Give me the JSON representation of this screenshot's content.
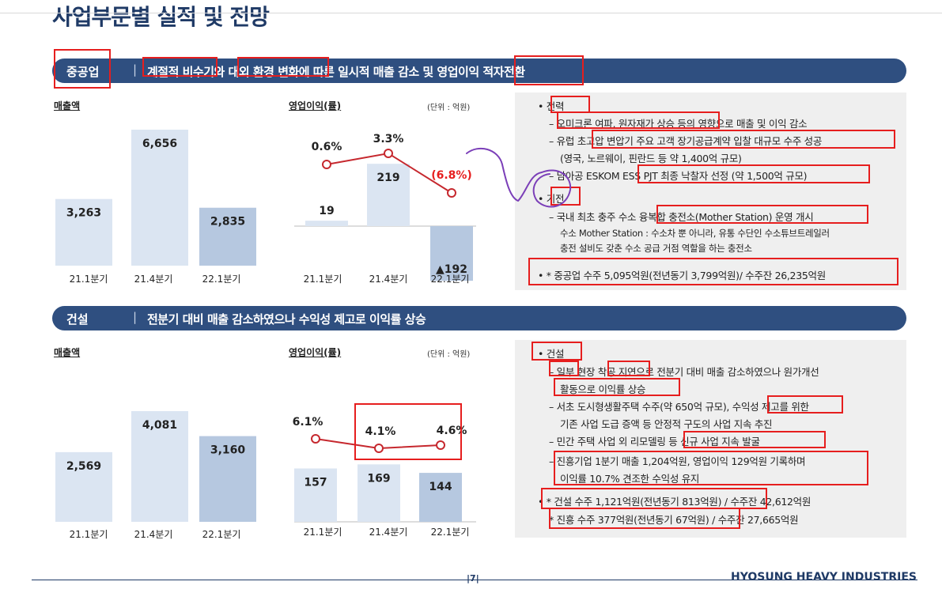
{
  "page": {
    "title": "사업부문별 실적 및 전망",
    "page_number": "7",
    "company": "HYOSUNG HEAVY INDUSTRIES"
  },
  "colors": {
    "navy": "#2f4f80",
    "bar_light": "#dbe5f2",
    "bar_dark": "#b6c8e0",
    "line_red": "#c6282e",
    "annot_red": "#e61e1e",
    "annot_purple": "#7b3fb8"
  },
  "sections": [
    {
      "tag": "중공업",
      "headline": "계절적 비수기와 대외 환경 변화에 따른 일시적 매출 감소 및 영업이익 적자전환",
      "sales_label": "매출액",
      "op_label": "영업이익(률)",
      "unit": "(단위 : 억원)",
      "bullets": [
        {
          "head": "전력",
          "items": [
            {
              "dash": true,
              "text": "오미크론 여파, 원자재가 상승 등의 영향으로 매출 및 이익 감소"
            },
            {
              "dash": true,
              "text": "유럽 초고압 변압기 주요 고객 장기공급계약 입찰 대규모 수주 성공"
            },
            {
              "dash": false,
              "text": "(영국, 노르웨이, 핀란드 등 약 1,400억 규모)"
            },
            {
              "dash": true,
              "text": "남아공 ESKOM ESS PJT 최종 낙찰자 선정 (약 1,500억 규모)"
            }
          ]
        },
        {
          "head": "기전",
          "items": [
            {
              "dash": true,
              "text": "국내 최초 충주 수소 융복합 충전소(Mother Station) 운영 개시"
            },
            {
              "dash": false,
              "text": "수소 Mother Station : 수소차 뿐 아니라, 유통 수단인 수소튜브트레일러"
            },
            {
              "dash": false,
              "text": "충전 설비도 갖춘 수소 공급 거점 역할을 하는 충전소"
            }
          ]
        }
      ],
      "summary": [
        "* 중공업 수주 5,095억원(전년동기 3,799억원)/ 수주잔 26,235억원"
      ]
    },
    {
      "tag": "건설",
      "headline": "전분기 대비 매출 감소하였으나 수익성 제고로 이익률 상승",
      "sales_label": "매출액",
      "op_label": "영업이익(률)",
      "unit": "(단위 : 억원)",
      "bullets": [
        {
          "head": "건설",
          "items": [
            {
              "dash": true,
              "text": "일부 현장 착공 지연으로 전분기 대비 매출 감소하였으나 원가개선"
            },
            {
              "dash": false,
              "text": "활동으로 이익률 상승"
            },
            {
              "dash": true,
              "text": "서초 도시형생활주택 수주(약 650억 규모), 수익성 제고를 위한"
            },
            {
              "dash": false,
              "text": "기존 사업 도급 증액 등 안정적 구도의 사업 지속 추진"
            },
            {
              "dash": true,
              "text": "민간 주택 사업 외 리모델링 등 신규 사업 지속 발굴"
            },
            {
              "dash": true,
              "text": "진흥기업 1분기 매출 1,204억원, 영업이익 129억원 기록하며"
            },
            {
              "dash": false,
              "text": "이익률 10.7% 견조한 수익성 유지"
            }
          ]
        }
      ],
      "summary": [
        "* 건설 수주 1,121억원(전년동기 813억원) / 수주잔 42,612억원",
        "* 진흥 수주 377억원(전년동기 67억원) / 수주잔 27,665억원"
      ]
    }
  ],
  "chart_data": [
    {
      "type": "bar",
      "title": "매출액",
      "section": "중공업",
      "categories": [
        "21.1분기",
        "21.4분기",
        "22.1분기"
      ],
      "values": [
        3263,
        6656,
        2835
      ],
      "labels": [
        "3,263",
        "6,656",
        "2,835"
      ],
      "ylim": [
        0,
        7000
      ]
    },
    {
      "type": "bar+line",
      "title": "영업이익(률)",
      "section": "중공업",
      "unit": "(단위 : 억원)",
      "categories": [
        "21.1분기",
        "21.4분기",
        "22.1분기"
      ],
      "values": [
        19,
        219,
        -192
      ],
      "labels": [
        "19",
        "219",
        "▲192"
      ],
      "margin": [
        0.6,
        3.3,
        -6.8
      ],
      "margin_labels": [
        "0.6%",
        "3.3%",
        "(6.8%)"
      ]
    },
    {
      "type": "bar",
      "title": "매출액",
      "section": "건설",
      "categories": [
        "21.1분기",
        "21.4분기",
        "22.1분기"
      ],
      "values": [
        2569,
        4081,
        3160
      ],
      "labels": [
        "2,569",
        "4,081",
        "3,160"
      ],
      "ylim": [
        0,
        5000
      ]
    },
    {
      "type": "bar+line",
      "title": "영업이익(률)",
      "section": "건설",
      "unit": "(단위 : 억원)",
      "categories": [
        "21.1분기",
        "21.4분기",
        "22.1분기"
      ],
      "values": [
        157,
        169,
        144
      ],
      "labels": [
        "157",
        "169",
        "144"
      ],
      "margin": [
        6.1,
        4.1,
        4.6
      ],
      "margin_labels": [
        "6.1%",
        "4.1%",
        "4.6%"
      ]
    }
  ]
}
